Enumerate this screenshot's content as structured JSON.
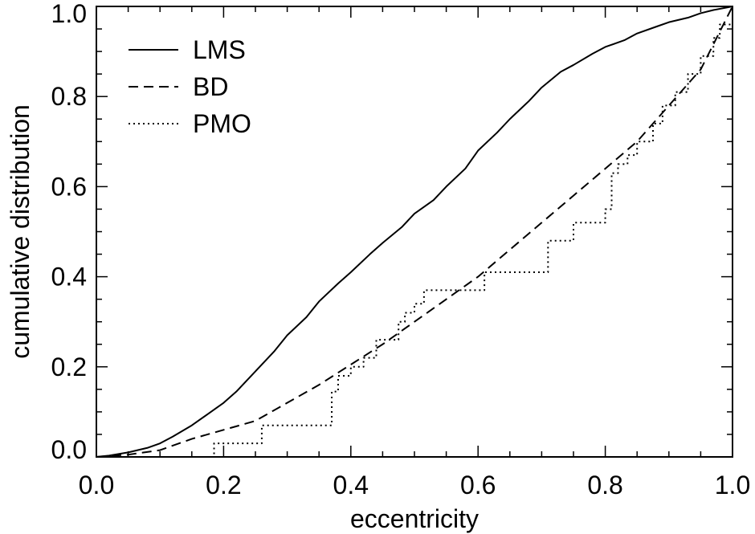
{
  "chart_data": {
    "type": "line",
    "title": "",
    "xlabel": "eccentricity",
    "ylabel": "cumulative distribution",
    "xlim": [
      0.0,
      1.0
    ],
    "ylim": [
      0.0,
      1.0
    ],
    "grid": false,
    "legend_position": "top-left",
    "x_ticks": [
      "0.0",
      "0.2",
      "0.4",
      "0.6",
      "0.8",
      "1.0"
    ],
    "y_ticks": [
      "0.0",
      "0.2",
      "0.4",
      "0.6",
      "0.8",
      "1.0"
    ],
    "series": [
      {
        "name": "LMS",
        "style": "solid",
        "x": [
          0.0,
          0.02,
          0.05,
          0.08,
          0.1,
          0.12,
          0.15,
          0.18,
          0.2,
          0.22,
          0.25,
          0.28,
          0.3,
          0.33,
          0.35,
          0.38,
          0.4,
          0.43,
          0.45,
          0.48,
          0.5,
          0.53,
          0.55,
          0.58,
          0.6,
          0.63,
          0.65,
          0.68,
          0.7,
          0.73,
          0.75,
          0.78,
          0.8,
          0.83,
          0.85,
          0.88,
          0.9,
          0.93,
          0.95,
          0.97,
          1.0
        ],
        "y": [
          0.0,
          0.003,
          0.01,
          0.02,
          0.03,
          0.045,
          0.07,
          0.1,
          0.12,
          0.145,
          0.19,
          0.235,
          0.27,
          0.31,
          0.345,
          0.385,
          0.41,
          0.45,
          0.475,
          0.51,
          0.54,
          0.57,
          0.6,
          0.64,
          0.68,
          0.72,
          0.75,
          0.79,
          0.82,
          0.855,
          0.87,
          0.895,
          0.91,
          0.925,
          0.94,
          0.955,
          0.965,
          0.975,
          0.985,
          0.992,
          1.0
        ]
      },
      {
        "name": "BD",
        "style": "dashed",
        "x": [
          0.0,
          0.05,
          0.1,
          0.15,
          0.2,
          0.25,
          0.3,
          0.35,
          0.4,
          0.45,
          0.5,
          0.55,
          0.6,
          0.65,
          0.7,
          0.75,
          0.8,
          0.85,
          0.9,
          0.95,
          1.0
        ],
        "y": [
          0.0,
          0.005,
          0.015,
          0.04,
          0.06,
          0.08,
          0.12,
          0.16,
          0.205,
          0.25,
          0.3,
          0.35,
          0.4,
          0.46,
          0.52,
          0.58,
          0.64,
          0.7,
          0.78,
          0.86,
          1.0
        ]
      },
      {
        "name": "PMO",
        "style": "dotted",
        "step": true,
        "x": [
          0.0,
          0.185,
          0.26,
          0.37,
          0.38,
          0.4,
          0.42,
          0.44,
          0.475,
          0.485,
          0.5,
          0.515,
          0.535,
          0.61,
          0.71,
          0.72,
          0.75,
          0.8,
          0.81,
          0.82,
          0.835,
          0.85,
          0.875,
          0.89,
          0.91,
          0.93,
          0.95,
          0.97,
          0.98,
          1.0
        ],
        "y": [
          0.0,
          0.03,
          0.07,
          0.145,
          0.18,
          0.2,
          0.22,
          0.26,
          0.3,
          0.32,
          0.34,
          0.37,
          0.37,
          0.41,
          0.48,
          0.48,
          0.52,
          0.55,
          0.63,
          0.65,
          0.67,
          0.7,
          0.74,
          0.78,
          0.81,
          0.85,
          0.89,
          0.93,
          0.96,
          1.0
        ]
      }
    ]
  }
}
